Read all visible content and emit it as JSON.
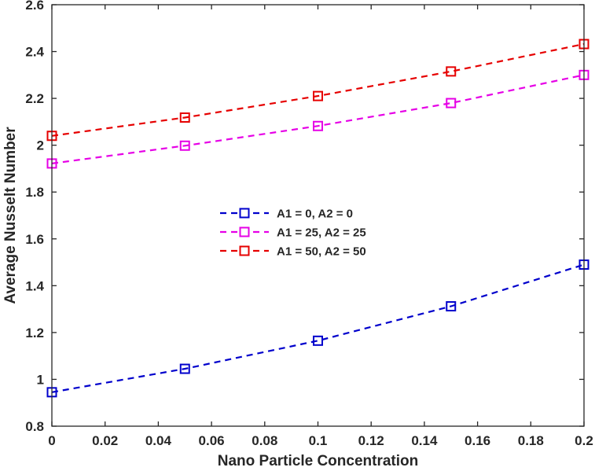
{
  "chart_data": {
    "type": "line",
    "title": "",
    "xlabel": "Nano Particle Concentration",
    "ylabel": "Average Nusselt Number",
    "xlim": [
      0,
      0.2
    ],
    "ylim": [
      0.8,
      2.6
    ],
    "xticks": [
      "0",
      "0.02",
      "0.04",
      "0.06",
      "0.08",
      "0.1",
      "0.12",
      "0.14",
      "0.16",
      "0.18",
      "0.2"
    ],
    "yticks": [
      "0.8",
      "1",
      "1.2",
      "1.4",
      "1.6",
      "1.8",
      "2",
      "2.2",
      "2.4",
      "2.6"
    ],
    "grid": false,
    "legend_position": "center",
    "x": [
      0,
      0.05,
      0.1,
      0.15,
      0.2
    ],
    "series": [
      {
        "name": "A1 = 0, A2 = 0",
        "color": "#0000CC",
        "marker": "square",
        "line_style": "dashed",
        "values": [
          0.945,
          1.045,
          1.165,
          1.312,
          1.49
        ]
      },
      {
        "name": "A1 = 25, A2 = 25",
        "color": "#E600E6",
        "marker": "square",
        "line_style": "dashed",
        "values": [
          1.922,
          1.998,
          2.082,
          2.18,
          2.3
        ]
      },
      {
        "name": "A1 = 50, A2 = 50",
        "color": "#E60000",
        "marker": "square",
        "line_style": "dashed",
        "values": [
          2.04,
          2.118,
          2.21,
          2.315,
          2.432
        ]
      }
    ]
  }
}
